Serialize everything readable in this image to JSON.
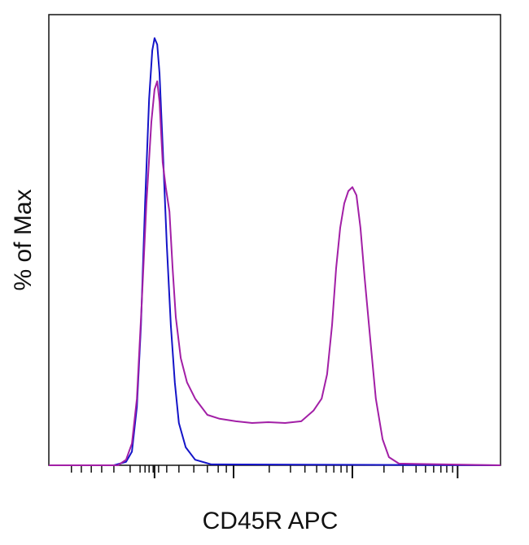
{
  "chart_data": {
    "type": "line",
    "xlabel": "CD45R APC",
    "ylabel": "% of Max",
    "xlim": [
      0,
      1000
    ],
    "ylim": [
      0,
      105.5
    ],
    "xticks": [
      234,
      409,
      672,
      905
    ],
    "xminorticks": [
      50,
      72,
      94,
      117,
      144,
      180,
      202,
      213,
      222,
      231,
      243,
      261,
      288,
      321,
      351,
      375,
      393,
      488,
      535,
      567,
      593,
      614,
      631,
      647,
      660,
      742,
      784,
      813,
      834,
      852,
      868,
      881,
      894
    ],
    "series": [
      {
        "color": "#1414c8",
        "x": [
          0,
          144,
          171,
          184,
          195,
          204,
          213,
          222,
          229,
          234,
          240,
          245,
          252,
          261,
          270,
          279,
          288,
          303,
          324,
          360,
          1000
        ],
        "values": [
          0,
          0,
          0.8,
          3.2,
          13.7,
          32.8,
          61.0,
          85.7,
          97.1,
          100,
          98.5,
          91.8,
          74.7,
          51.8,
          32.8,
          19.4,
          9.9,
          4.2,
          1.3,
          0.2,
          0
        ]
      },
      {
        "color": "#a21fa6",
        "x": [
          0,
          153,
          171,
          184,
          195,
          205,
          216,
          227,
          234,
          240,
          245,
          252,
          259,
          267,
          274,
          281,
          292,
          306,
          324,
          351,
          378,
          414,
          450,
          486,
          523,
          559,
          586,
          604,
          616,
          627,
          636,
          645,
          654,
          663,
          672,
          681,
          690,
          699,
          712,
          724,
          739,
          753,
          775,
          1000
        ],
        "values": [
          0,
          0,
          1.3,
          5.1,
          15.6,
          36.6,
          61.3,
          80.4,
          88.0,
          89.9,
          85.1,
          70.9,
          65.1,
          59.4,
          46.1,
          34.7,
          25.1,
          19.4,
          15.6,
          11.8,
          10.9,
          10.3,
          9.9,
          10.1,
          9.9,
          10.3,
          12.8,
          15.6,
          21.3,
          32.8,
          46.1,
          55.6,
          61.3,
          64.2,
          65.1,
          63.2,
          55.6,
          44.2,
          29.0,
          15.6,
          6.1,
          1.9,
          0.4,
          0
        ]
      }
    ]
  }
}
